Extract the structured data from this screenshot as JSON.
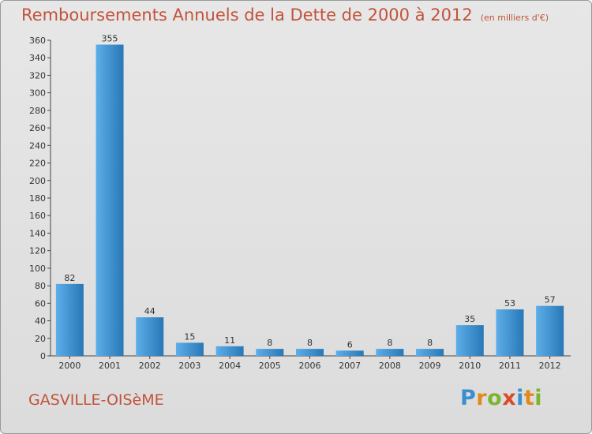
{
  "title": "Remboursements Annuels de la Dette de 2000 à 2012",
  "subtitle": "(en milliers d'€)",
  "commune": "GASVILLE-OISèME",
  "logo": {
    "text": "Proxiti",
    "letters": [
      "P",
      "r",
      "o",
      "x",
      "i",
      "t",
      "i"
    ]
  },
  "colors": {
    "bar_light": "#5daee8",
    "bar_dark": "#2878b8",
    "title": "#c1533a"
  },
  "chart_data": {
    "type": "bar",
    "title": "Remboursements Annuels de la Dette de 2000 à 2012",
    "xlabel": "",
    "ylabel": "",
    "categories": [
      "2000",
      "2001",
      "2002",
      "2003",
      "2004",
      "2005",
      "2006",
      "2007",
      "2008",
      "2009",
      "2010",
      "2011",
      "2012"
    ],
    "values": [
      82,
      355,
      44,
      15,
      11,
      8,
      8,
      6,
      8,
      8,
      35,
      53,
      57
    ],
    "value_labels": [
      "82",
      "355",
      "44",
      "15",
      "11",
      "8",
      "8",
      "6",
      "8",
      "8",
      "35",
      "53",
      "57"
    ],
    "ylim": [
      0,
      360
    ],
    "yticks": [
      0,
      20,
      40,
      60,
      80,
      100,
      120,
      140,
      160,
      180,
      200,
      220,
      240,
      260,
      280,
      300,
      320,
      340,
      360
    ],
    "grid": false
  }
}
